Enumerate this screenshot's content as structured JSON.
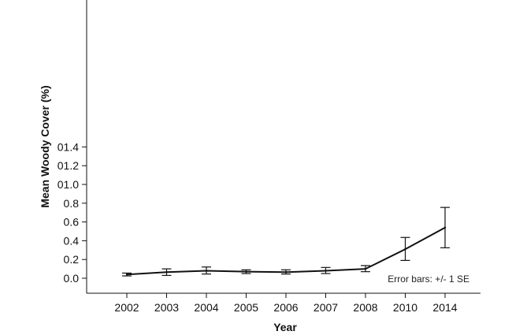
{
  "chart_data": {
    "type": "line",
    "title": "",
    "xlabel": "Year",
    "ylabel": "Mean Woody Cover (%)",
    "categories": [
      "2002",
      "2003",
      "2004",
      "2005",
      "2006",
      "2007",
      "2008",
      "2010",
      "2014"
    ],
    "y_tick_labels": [
      "0.0",
      "0.2",
      "0.4",
      "0.6",
      "0.8",
      "01.0",
      "01.2",
      "01.4"
    ],
    "ylim": [
      0,
      1.5
    ],
    "grid": false,
    "legend": "none",
    "series": [
      {
        "values": [
          0.04,
          0.065,
          0.08,
          0.07,
          0.065,
          0.08,
          0.1,
          0.31,
          0.54
        ],
        "error_low": [
          0.025,
          0.03,
          0.045,
          0.05,
          0.045,
          0.05,
          0.07,
          0.19,
          0.325
        ],
        "error_high": [
          0.055,
          0.1,
          0.12,
          0.09,
          0.09,
          0.115,
          0.135,
          0.435,
          0.755
        ]
      }
    ],
    "annotation": "Error bars: +/- 1 SE",
    "colors": {
      "line": "#111111",
      "axis": "#111111",
      "background": "#ffffff"
    }
  }
}
